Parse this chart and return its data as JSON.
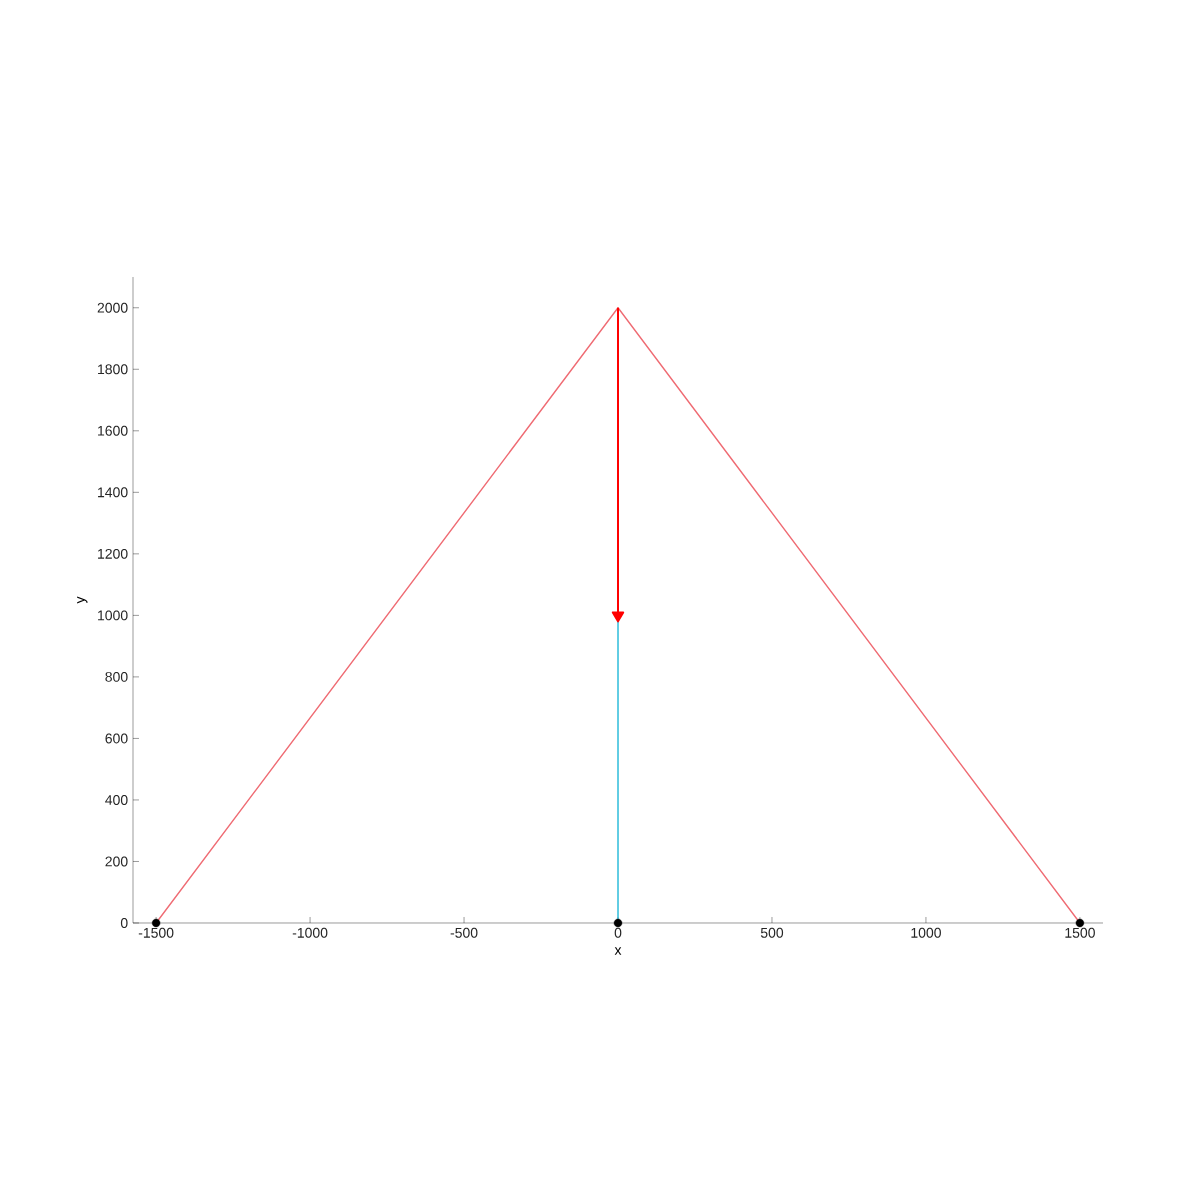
{
  "chart_data": {
    "type": "line",
    "xlabel": "x",
    "ylabel": "y",
    "xlim": [
      -1575,
      1575
    ],
    "ylim": [
      0,
      2100
    ],
    "xticks": [
      -1500,
      -1000,
      -500,
      0,
      500,
      1000,
      1500
    ],
    "yticks": [
      0,
      200,
      400,
      600,
      800,
      1000,
      1200,
      1400,
      1600,
      1800,
      2000
    ],
    "grid": false,
    "series": [
      {
        "x": [
          -1500,
          0,
          1500
        ],
        "values": [
          0,
          2000,
          0
        ],
        "color": "#ef6b73"
      },
      {
        "x": [
          0,
          0
        ],
        "values": [
          0,
          1000
        ],
        "color": "#1fb8d8"
      },
      {
        "x": [
          0,
          0
        ],
        "values": [
          2000,
          1000
        ],
        "color": "#ff0000",
        "marker": "triangle"
      },
      {
        "type": "scatter",
        "x": [
          -1500,
          0,
          1500
        ],
        "values": [
          0,
          0,
          0
        ],
        "color": "#000000",
        "marker": "circle"
      }
    ]
  }
}
